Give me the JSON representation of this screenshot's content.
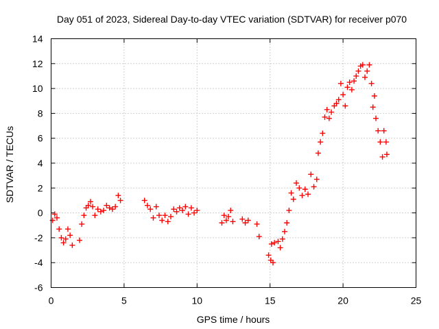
{
  "chart_data": {
    "type": "scatter",
    "title": "Day 051 of 2023, Sidereal Day-to-day VTEC variation (SDTVAR) for receiver p070",
    "xlabel": "GPS time / hours",
    "ylabel": "SDTVAR / TECUs",
    "xlim": [
      0,
      25
    ],
    "ylim": [
      -6,
      14
    ],
    "xticks": [
      0,
      5,
      10,
      15,
      20,
      25
    ],
    "yticks": [
      -6,
      -4,
      -2,
      0,
      2,
      4,
      6,
      8,
      10,
      12,
      14
    ],
    "grid": true,
    "marker": "+",
    "color": "#ff0000",
    "trace": [
      [
        0.1,
        -0.6
      ],
      [
        0.25,
        -0.1
      ],
      [
        0.4,
        -0.4
      ],
      [
        0.55,
        -1.3
      ],
      [
        0.7,
        -2.0
      ],
      [
        0.85,
        -2.4
      ],
      [
        1.0,
        -2.1
      ],
      [
        1.15,
        -1.3
      ],
      [
        1.3,
        -1.8
      ],
      [
        1.45,
        -2.6
      ],
      [
        1.95,
        -2.2
      ],
      [
        2.1,
        -0.9
      ],
      [
        2.25,
        -0.2
      ],
      [
        2.4,
        0.4
      ],
      [
        2.55,
        0.6
      ],
      [
        2.7,
        0.9
      ],
      [
        2.85,
        0.5
      ],
      [
        3.0,
        -0.2
      ],
      [
        3.2,
        0.3
      ],
      [
        3.4,
        0.1
      ],
      [
        3.6,
        0.2
      ],
      [
        3.8,
        0.6
      ],
      [
        4.0,
        0.4
      ],
      [
        4.2,
        0.3
      ],
      [
        4.4,
        0.5
      ],
      [
        4.6,
        1.4
      ],
      [
        4.75,
        1.0
      ],
      [
        6.4,
        1.0
      ],
      [
        6.6,
        0.6
      ],
      [
        6.8,
        0.3
      ],
      [
        7.0,
        -0.4
      ],
      [
        7.2,
        0.5
      ],
      [
        7.4,
        -0.2
      ],
      [
        7.6,
        -0.6
      ],
      [
        7.8,
        -0.2
      ],
      [
        8.0,
        -0.7
      ],
      [
        8.2,
        -0.3
      ],
      [
        8.4,
        0.3
      ],
      [
        8.6,
        0.1
      ],
      [
        8.8,
        0.4
      ],
      [
        9.0,
        0.2
      ],
      [
        9.2,
        0.5
      ],
      [
        9.4,
        -0.1
      ],
      [
        9.6,
        0.4
      ],
      [
        9.8,
        0.0
      ],
      [
        10.0,
        0.2
      ],
      [
        11.7,
        -0.8
      ],
      [
        11.85,
        -0.2
      ],
      [
        12.0,
        -0.6
      ],
      [
        12.15,
        -0.3
      ],
      [
        12.3,
        0.2
      ],
      [
        12.45,
        -0.7
      ],
      [
        13.1,
        -0.5
      ],
      [
        13.3,
        -0.8
      ],
      [
        13.5,
        -0.6
      ],
      [
        14.1,
        -0.9
      ],
      [
        14.25,
        -1.9
      ],
      [
        14.9,
        -3.4
      ],
      [
        15.05,
        -3.8
      ],
      [
        15.2,
        -4.0
      ],
      [
        15.1,
        -2.5
      ],
      [
        15.3,
        -2.4
      ],
      [
        15.55,
        -2.3
      ],
      [
        15.7,
        -2.8
      ],
      [
        15.85,
        -2.1
      ],
      [
        16.0,
        -1.5
      ],
      [
        16.15,
        -0.8
      ],
      [
        16.3,
        0.2
      ],
      [
        16.45,
        1.6
      ],
      [
        16.6,
        1.1
      ],
      [
        16.8,
        2.4
      ],
      [
        17.0,
        2.0
      ],
      [
        17.2,
        1.4
      ],
      [
        17.4,
        1.9
      ],
      [
        17.6,
        1.5
      ],
      [
        17.8,
        3.1
      ],
      [
        18.0,
        2.1
      ],
      [
        18.2,
        2.7
      ],
      [
        18.3,
        4.8
      ],
      [
        18.45,
        5.7
      ],
      [
        18.6,
        6.4
      ],
      [
        18.75,
        7.7
      ],
      [
        18.9,
        8.3
      ],
      [
        19.05,
        7.6
      ],
      [
        19.2,
        8.1
      ],
      [
        19.4,
        8.6
      ],
      [
        19.55,
        8.8
      ],
      [
        19.7,
        9.1
      ],
      [
        19.85,
        10.4
      ],
      [
        20.0,
        9.5
      ],
      [
        20.15,
        8.6
      ],
      [
        20.3,
        10.1
      ],
      [
        20.45,
        10.5
      ],
      [
        20.6,
        9.9
      ],
      [
        20.75,
        10.6
      ],
      [
        20.9,
        11.0
      ],
      [
        21.05,
        11.4
      ],
      [
        21.2,
        11.8
      ],
      [
        21.35,
        11.9
      ],
      [
        21.5,
        10.9
      ],
      [
        21.65,
        11.4
      ],
      [
        21.8,
        11.9
      ],
      [
        21.95,
        10.4
      ],
      [
        22.05,
        8.5
      ],
      [
        22.15,
        9.4
      ],
      [
        22.25,
        7.6
      ],
      [
        22.4,
        6.6
      ],
      [
        22.55,
        5.7
      ],
      [
        22.7,
        4.5
      ],
      [
        22.8,
        6.6
      ],
      [
        22.95,
        5.7
      ],
      [
        23.0,
        4.7
      ]
    ]
  }
}
